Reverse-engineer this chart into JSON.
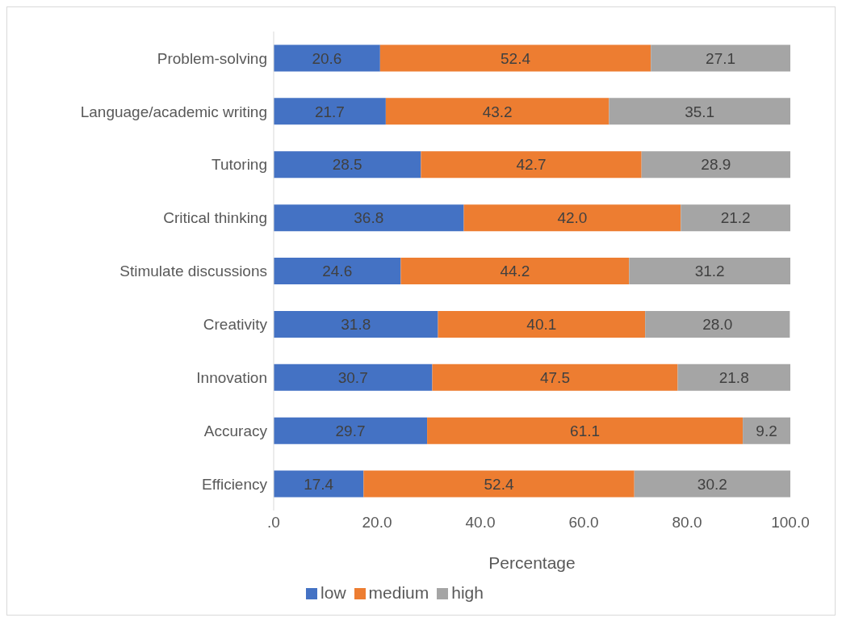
{
  "chart_data": {
    "type": "bar",
    "orientation": "horizontal",
    "stacked": true,
    "xlabel": "Percentage",
    "legend": "bottom",
    "categories": [
      "Problem-solving",
      "Language/academic writing",
      "Tutoring",
      "Critical thinking",
      "Stimulate discussions",
      "Creativity",
      "Innovation",
      "Accuracy",
      "Efficiency"
    ],
    "xlim": [
      0,
      100
    ],
    "xticks": [
      {
        "value": 0,
        "label": ".0"
      },
      {
        "value": 20,
        "label": "20.0"
      },
      {
        "value": 40,
        "label": "40.0"
      },
      {
        "value": 60,
        "label": "60.0"
      },
      {
        "value": 80,
        "label": "80.0"
      },
      {
        "value": 100,
        "label": "100.0"
      }
    ],
    "series": [
      {
        "name": "low",
        "color": "#4472c4",
        "values": [
          20.6,
          21.7,
          28.5,
          36.8,
          24.6,
          31.8,
          30.7,
          29.7,
          17.4
        ],
        "value_labels": [
          "20.6",
          "21.7",
          "28.5",
          "36.8",
          "24.6",
          "31.8",
          "30.7",
          "29.7",
          "17.4"
        ]
      },
      {
        "name": "medium",
        "color": "#ed7d31",
        "values": [
          52.4,
          43.2,
          42.7,
          42.0,
          44.2,
          40.1,
          47.5,
          61.1,
          52.4
        ],
        "value_labels": [
          "52.4",
          "43.2",
          "42.7",
          "42.0",
          "44.2",
          "40.1",
          "47.5",
          "61.1",
          "52.4"
        ]
      },
      {
        "name": "high",
        "color": "#a5a5a5",
        "values": [
          27.1,
          35.1,
          28.9,
          21.2,
          31.2,
          28.0,
          21.8,
          9.2,
          30.2
        ],
        "value_labels": [
          "27.1",
          "35.1",
          "28.9",
          "21.2",
          "31.2",
          "28.0",
          "21.8",
          "9.2",
          "30.2"
        ]
      }
    ]
  }
}
